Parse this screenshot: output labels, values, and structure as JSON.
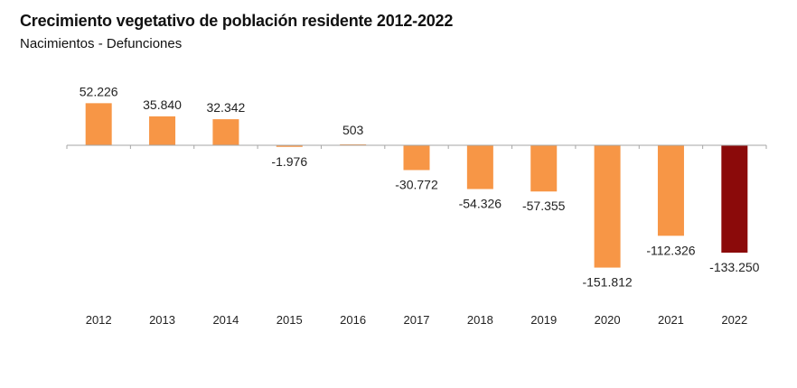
{
  "chart_data": {
    "type": "bar",
    "title": "Crecimiento vegetativo de población residente 2012-2022",
    "subtitle": "Nacimientos - Defunciones",
    "xlabel": "",
    "ylabel": "",
    "categories": [
      "2012",
      "2013",
      "2014",
      "2015",
      "2016",
      "2017",
      "2018",
      "2019",
      "2020",
      "2021",
      "2022"
    ],
    "values": [
      52226,
      35840,
      32342,
      -1976,
      503,
      -30772,
      -54326,
      -57355,
      -151812,
      -112326,
      -133250
    ],
    "data_labels": [
      "52.226",
      "35.840",
      "32.342",
      "-1.976",
      "503",
      "-30.772",
      "-54.326",
      "-57.355",
      "-151.812",
      "-112.326",
      "-133.250"
    ],
    "colors": {
      "default": "#F79646",
      "highlight": "#8B0A0A",
      "axis": "#A6A6A6"
    },
    "highlight_category": "2022",
    "grid": false,
    "legend": "none"
  }
}
